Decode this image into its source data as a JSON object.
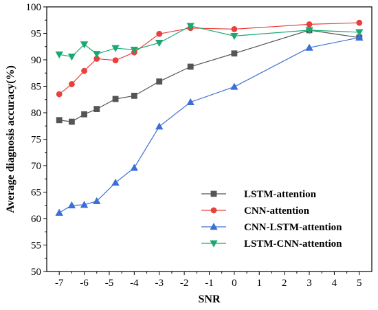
{
  "chart_data": {
    "type": "line",
    "xlabel": "SNR",
    "ylabel": "Average diagnosis accuracy(%)",
    "xlim": [
      -7.5,
      5.5
    ],
    "ylim": [
      50,
      100
    ],
    "xticks": [
      -7,
      -6,
      -5,
      -4,
      -3,
      -2,
      -1,
      0,
      1,
      2,
      3,
      4,
      5
    ],
    "yticks": [
      50,
      55,
      60,
      65,
      70,
      75,
      80,
      85,
      90,
      95,
      100
    ],
    "grid": false,
    "legend_position": "bottom-right",
    "series": [
      {
        "name": "LSTM-attention",
        "color": "#555555",
        "marker": "square",
        "x": [
          -7,
          -6.5,
          -6,
          -5.5,
          -4.75,
          -4,
          -3,
          -1.75,
          0,
          3,
          5
        ],
        "y": [
          78.6,
          78.3,
          79.7,
          80.7,
          82.6,
          83.2,
          85.9,
          88.7,
          91.2,
          95.6,
          94.2
        ]
      },
      {
        "name": "CNN-attention",
        "color": "#e8403c",
        "marker": "circle",
        "x": [
          -7,
          -6.5,
          -6,
          -5.5,
          -4.75,
          -4,
          -3,
          -1.75,
          0,
          3,
          5
        ],
        "y": [
          83.5,
          85.4,
          87.9,
          90.2,
          89.9,
          91.4,
          94.9,
          96.0,
          95.8,
          96.7,
          97.0
        ]
      },
      {
        "name": "CNN-LSTM-attention",
        "color": "#3b6fd8",
        "marker": "triangle-up",
        "x": [
          -7,
          -6.5,
          -6,
          -5.5,
          -4.75,
          -4,
          -3,
          -1.75,
          0,
          3,
          5
        ],
        "y": [
          61.1,
          62.5,
          62.6,
          63.3,
          66.8,
          69.6,
          77.4,
          82.0,
          84.9,
          92.3,
          94.2
        ]
      },
      {
        "name": "LSTM-CNN-attention",
        "color": "#1aa971",
        "marker": "triangle-down",
        "x": [
          -7,
          -6.5,
          -6,
          -5.5,
          -4.75,
          -4,
          -3,
          -1.75,
          0,
          3,
          5
        ],
        "y": [
          91.0,
          90.6,
          92.9,
          91.1,
          92.2,
          91.9,
          93.2,
          96.4,
          94.5,
          95.6,
          95.2
        ]
      }
    ]
  }
}
